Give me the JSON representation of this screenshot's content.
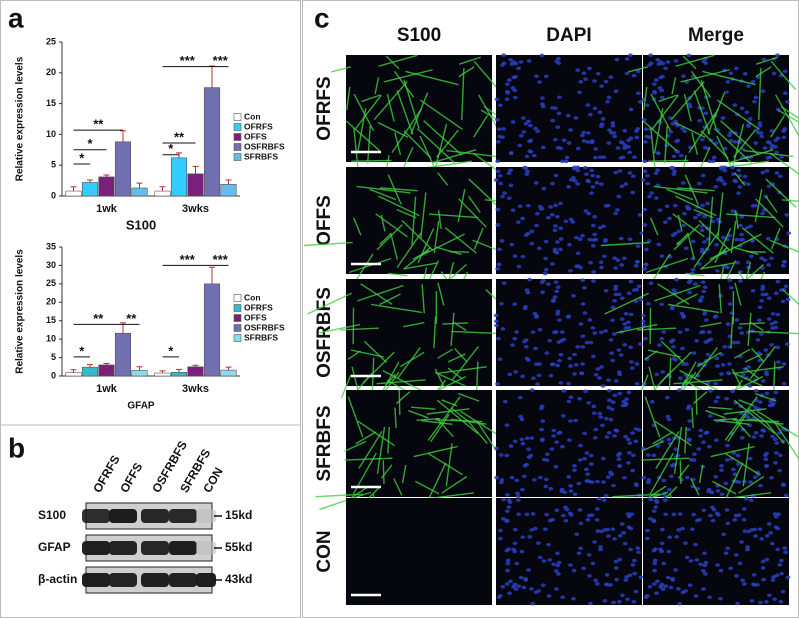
{
  "panels": {
    "a": "a",
    "b": "b",
    "c": "c"
  },
  "chart_data": [
    {
      "type": "bar",
      "ylabel": "Relative expression levels",
      "xlabel": "S100",
      "categories": [
        "1wk",
        "3wks"
      ],
      "ylim": [
        0,
        25
      ],
      "yticks": [
        0,
        5,
        10,
        15,
        20,
        25
      ],
      "series": [
        {
          "name": "Con",
          "color": "#ffffff",
          "values": [
            0.8,
            0.8
          ],
          "errors": [
            0.7,
            0.7
          ]
        },
        {
          "name": "OFRFS",
          "color": "#33ccff",
          "values": [
            2.2,
            6.2
          ],
          "errors": [
            0.4,
            0.8
          ]
        },
        {
          "name": "OFFS",
          "color": "#7b1f7b",
          "values": [
            3.1,
            3.6
          ],
          "errors": [
            0.3,
            1.2
          ]
        },
        {
          "name": "OSFRBFS",
          "color": "#7070b0",
          "values": [
            8.8,
            17.6
          ],
          "errors": [
            1.8,
            3.5
          ]
        },
        {
          "name": "SFRBFS",
          "color": "#66bbee",
          "values": [
            1.3,
            1.9
          ],
          "errors": [
            0.8,
            0.7
          ]
        }
      ],
      "annotations": [
        "*",
        "*",
        "**",
        "*",
        "**",
        "***",
        "***"
      ]
    },
    {
      "type": "bar",
      "ylabel": "Relative expression levels",
      "xlabel": "GFAP",
      "categories": [
        "1wk",
        "3wks"
      ],
      "ylim": [
        0,
        35
      ],
      "yticks": [
        0,
        5,
        10,
        15,
        20,
        25,
        30,
        35
      ],
      "series": [
        {
          "name": "Con",
          "color": "#ffffff",
          "values": [
            0.9,
            0.8
          ],
          "errors": [
            0.8,
            0.6
          ]
        },
        {
          "name": "OFRFS",
          "color": "#33bbcc",
          "values": [
            2.4,
            1.0
          ],
          "errors": [
            0.7,
            0.8
          ]
        },
        {
          "name": "OFFS",
          "color": "#7b1f7b",
          "values": [
            3.0,
            2.5
          ],
          "errors": [
            0.4,
            0.4
          ]
        },
        {
          "name": "OSFRBFS",
          "color": "#7070b0",
          "values": [
            11.6,
            25
          ],
          "errors": [
            2.8,
            4.5
          ]
        },
        {
          "name": "SFRBFS",
          "color": "#88ddee",
          "values": [
            1.5,
            1.6
          ],
          "errors": [
            1.0,
            0.8
          ]
        }
      ],
      "annotations": [
        "*",
        "**",
        "**",
        "*",
        "***",
        "***"
      ]
    }
  ],
  "blot": {
    "lanes": [
      "OFRFS",
      "OFFS",
      "OSFRBFS",
      "SFRBFS",
      "CON"
    ],
    "rows": [
      {
        "label": "S100",
        "size": "15kd"
      },
      {
        "label": "GFAP",
        "size": "55kd"
      },
      {
        "label": "β-actin",
        "size": "43kd"
      }
    ]
  },
  "micro": {
    "columns": [
      "S100",
      "DAPI",
      "Merge"
    ],
    "rows": [
      "OFRFS",
      "OFFS",
      "OSFRBFS",
      "SFRBFS",
      "CON"
    ]
  }
}
